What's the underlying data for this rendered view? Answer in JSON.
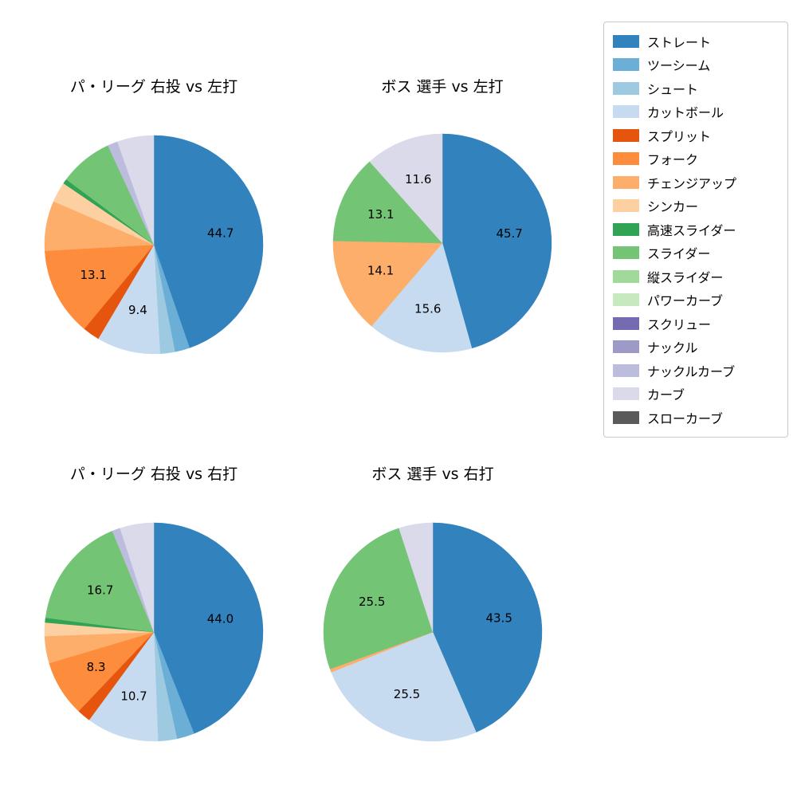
{
  "palette": {
    "ストレート": "#3182bd",
    "ツーシーム": "#6baed6",
    "シュート": "#9ecae1",
    "カットボール": "#c6dbef",
    "スプリット": "#e6550d",
    "フォーク": "#fd8d3c",
    "チェンジアップ": "#fdae6b",
    "シンカー": "#fdd0a2",
    "高速スライダー": "#31a354",
    "スライダー": "#74c476",
    "縦スライダー": "#a1d99b",
    "パワーカーブ": "#c7e9c0",
    "スクリュー": "#756bb1",
    "ナックル": "#9e9ac8",
    "ナックルカーブ": "#bcbddc",
    "カーブ": "#dadaeb",
    "スローカーブ": "#5a5a5a"
  },
  "legend": {
    "items": [
      "ストレート",
      "ツーシーム",
      "シュート",
      "カットボール",
      "スプリット",
      "フォーク",
      "チェンジアップ",
      "シンカー",
      "高速スライダー",
      "スライダー",
      "縦スライダー",
      "パワーカーブ",
      "スクリュー",
      "ナックル",
      "ナックルカーブ",
      "カーブ",
      "スローカーブ"
    ]
  },
  "chart_data": [
    {
      "type": "pie",
      "title": "パ・リーグ 右投 vs 左打",
      "start_angle_deg": 90,
      "direction": "clockwise",
      "slices": [
        {
          "name": "ストレート",
          "value": 44.7,
          "label": "44.7"
        },
        {
          "name": "ツーシーム",
          "value": 2.2
        },
        {
          "name": "シュート",
          "value": 2.2
        },
        {
          "name": "カットボール",
          "value": 9.4,
          "label": "9.4"
        },
        {
          "name": "スプリット",
          "value": 2.5
        },
        {
          "name": "フォーク",
          "value": 13.1,
          "label": "13.1"
        },
        {
          "name": "チェンジアップ",
          "value": 7.4
        },
        {
          "name": "シンカー",
          "value": 3.0
        },
        {
          "name": "高速スライダー",
          "value": 0.7
        },
        {
          "name": "スライダー",
          "value": 7.9
        },
        {
          "name": "ナックルカーブ",
          "value": 1.5
        },
        {
          "name": "カーブ",
          "value": 5.4
        }
      ]
    },
    {
      "type": "pie",
      "title": "ボス 選手 vs 左打",
      "start_angle_deg": 90,
      "direction": "clockwise",
      "slices": [
        {
          "name": "ストレート",
          "value": 45.7,
          "label": "45.7"
        },
        {
          "name": "カットボール",
          "value": 15.6,
          "label": "15.6"
        },
        {
          "name": "チェンジアップ",
          "value": 14.1,
          "label": "14.1"
        },
        {
          "name": "スライダー",
          "value": 13.1,
          "label": "13.1"
        },
        {
          "name": "カーブ",
          "value": 11.6,
          "label": "11.6"
        }
      ]
    },
    {
      "type": "pie",
      "title": "パ・リーグ 右投 vs 右打",
      "start_angle_deg": 90,
      "direction": "clockwise",
      "slices": [
        {
          "name": "ストレート",
          "value": 44.0,
          "label": "44.0"
        },
        {
          "name": "ツーシーム",
          "value": 2.6
        },
        {
          "name": "シュート",
          "value": 2.8
        },
        {
          "name": "カットボール",
          "value": 10.7,
          "label": "10.7"
        },
        {
          "name": "スプリット",
          "value": 2.0
        },
        {
          "name": "フォーク",
          "value": 8.3,
          "label": "8.3"
        },
        {
          "name": "チェンジアップ",
          "value": 4.0
        },
        {
          "name": "シンカー",
          "value": 2.0
        },
        {
          "name": "高速スライダー",
          "value": 0.7
        },
        {
          "name": "スライダー",
          "value": 16.7,
          "label": "16.7"
        },
        {
          "name": "ナックルカーブ",
          "value": 1.2
        },
        {
          "name": "カーブ",
          "value": 5.0
        }
      ]
    },
    {
      "type": "pie",
      "title": "ボス 選手 vs 右打",
      "start_angle_deg": 90,
      "direction": "clockwise",
      "slices": [
        {
          "name": "ストレート",
          "value": 43.5,
          "label": "43.5"
        },
        {
          "name": "カットボール",
          "value": 25.5,
          "label": "25.5"
        },
        {
          "name": "チェンジアップ",
          "value": 0.5
        },
        {
          "name": "スライダー",
          "value": 25.5,
          "label": "25.5"
        },
        {
          "name": "カーブ",
          "value": 5.0
        }
      ]
    }
  ]
}
